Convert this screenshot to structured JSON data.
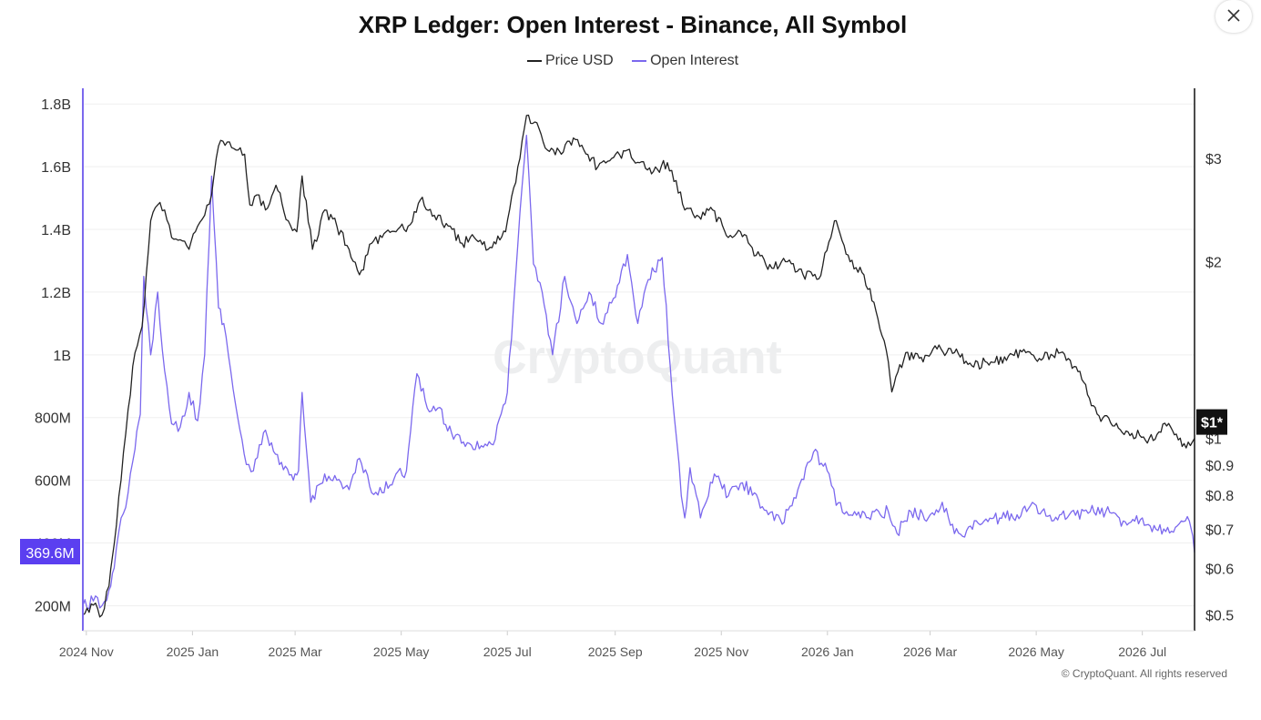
{
  "chart_data": {
    "type": "line",
    "title": "XRP Ledger: Open Interest - Binance, All Symbol",
    "legend": {
      "position": "top-center"
    },
    "x_tick_labels": [
      "2024 Nov",
      "2025 Jan",
      "2025 Mar",
      "2025 May",
      "2025 Jul",
      "2025 Sep",
      "2025 Nov",
      "2026 Jan",
      "2026 Mar",
      "2026 May",
      "2026 Jul"
    ],
    "y_left": {
      "tick_labels": [
        "200M",
        "400M",
        "600M",
        "800M",
        "1B",
        "1.2B",
        "1.4B",
        "1.6B",
        "1.8B"
      ],
      "tick_values": [
        200000000,
        400000000,
        600000000,
        800000000,
        1000000000,
        1200000000,
        1400000000,
        1600000000,
        1800000000
      ],
      "range": [
        120000000,
        1850000000
      ],
      "current_value_label": "369.6M",
      "color": "#7b68ee"
    },
    "y_right": {
      "scale": "log",
      "tick_labels": [
        "$0.5",
        "$0.6",
        "$0.7",
        "$0.8",
        "$0.9",
        "$1",
        "$2",
        "$3"
      ],
      "tick_values": [
        0.5,
        0.6,
        0.7,
        0.8,
        0.9,
        1,
        2,
        3
      ],
      "range": [
        0.47,
        3.95
      ],
      "current_value_label": "$1*",
      "color": "#111111"
    },
    "grid": true,
    "series": [
      {
        "name": "Price USD",
        "axis": "right",
        "color": "#222222",
        "x": [
          "2024-10-30",
          "2024-11-05",
          "2024-11-10",
          "2024-11-14",
          "2024-11-17",
          "2024-11-21",
          "2024-11-25",
          "2024-11-29",
          "2024-12-03",
          "2024-12-08",
          "2024-12-12",
          "2024-12-16",
          "2024-12-20",
          "2024-12-25",
          "2024-12-30",
          "2025-01-04",
          "2025-01-08",
          "2025-01-12",
          "2025-01-16",
          "2025-01-21",
          "2025-01-26",
          "2025-01-31",
          "2025-02-03",
          "2025-02-07",
          "2025-02-12",
          "2025-02-18",
          "2025-02-25",
          "2025-03-02",
          "2025-03-05",
          "2025-03-11",
          "2025-03-18",
          "2025-03-25",
          "2025-04-01",
          "2025-04-07",
          "2025-04-14",
          "2025-04-20",
          "2025-04-28",
          "2025-05-05",
          "2025-05-12",
          "2025-05-20",
          "2025-05-28",
          "2025-06-05",
          "2025-06-12",
          "2025-06-20",
          "2025-06-30",
          "2025-07-07",
          "2025-07-12",
          "2025-07-18",
          "2025-07-24",
          "2025-08-01",
          "2025-08-08",
          "2025-08-14",
          "2025-08-22",
          "2025-08-30",
          "2025-09-08",
          "2025-09-15",
          "2025-09-23",
          "2025-10-01",
          "2025-10-06",
          "2025-10-11",
          "2025-10-18",
          "2025-10-27",
          "2025-11-05",
          "2025-11-12",
          "2025-11-21",
          "2025-11-30",
          "2025-12-09",
          "2025-12-18",
          "2025-12-27",
          "2026-01-03",
          "2026-01-06",
          "2026-01-14",
          "2026-01-22",
          "2026-01-30",
          "2026-02-05",
          "2026-02-07",
          "2026-02-15",
          "2026-02-25",
          "2026-03-05",
          "2026-03-15",
          "2026-03-25",
          "2026-04-05",
          "2026-04-15",
          "2026-04-25",
          "2026-05-05",
          "2026-05-15",
          "2026-05-25",
          "2026-06-05",
          "2026-06-15",
          "2026-06-25",
          "2026-07-05",
          "2026-07-15",
          "2026-07-25",
          "2026-07-31"
        ],
        "values": [
          0.5,
          0.52,
          0.5,
          0.56,
          0.66,
          0.85,
          1.12,
          1.4,
          1.55,
          2.35,
          2.5,
          2.45,
          2.2,
          2.18,
          2.1,
          2.3,
          2.4,
          2.6,
          3.15,
          3.2,
          3.1,
          3.05,
          2.5,
          2.6,
          2.45,
          2.7,
          2.35,
          2.25,
          2.8,
          2.1,
          2.45,
          2.3,
          2.1,
          1.9,
          2.15,
          2.2,
          2.25,
          2.3,
          2.55,
          2.4,
          2.3,
          2.15,
          2.2,
          2.1,
          2.25,
          2.9,
          3.55,
          3.45,
          3.1,
          3.05,
          3.25,
          3.1,
          2.9,
          3.0,
          3.1,
          2.95,
          2.85,
          2.95,
          2.75,
          2.45,
          2.4,
          2.45,
          2.2,
          2.25,
          2.05,
          1.95,
          2.0,
          1.9,
          1.87,
          2.2,
          2.35,
          2.0,
          1.9,
          1.6,
          1.35,
          1.2,
          1.4,
          1.35,
          1.42,
          1.4,
          1.33,
          1.35,
          1.38,
          1.4,
          1.37,
          1.4,
          1.3,
          1.1,
          1.05,
          1.02,
          1.0,
          1.05,
          0.98,
          1.0
        ]
      },
      {
        "name": "Open Interest",
        "axis": "left",
        "color": "#7b68ee",
        "x": [
          "2024-10-30",
          "2024-11-05",
          "2024-11-10",
          "2024-11-14",
          "2024-11-17",
          "2024-11-21",
          "2024-11-25",
          "2024-11-29",
          "2024-12-02",
          "2024-12-04",
          "2024-12-08",
          "2024-12-12",
          "2024-12-16",
          "2024-12-20",
          "2024-12-25",
          "2024-12-30",
          "2025-01-04",
          "2025-01-08",
          "2025-01-12",
          "2025-01-16",
          "2025-01-19",
          "2025-01-23",
          "2025-01-27",
          "2025-02-01",
          "2025-02-05",
          "2025-02-12",
          "2025-02-20",
          "2025-02-28",
          "2025-03-03",
          "2025-03-05",
          "2025-03-10",
          "2025-03-18",
          "2025-03-25",
          "2025-04-01",
          "2025-04-07",
          "2025-04-14",
          "2025-04-20",
          "2025-04-28",
          "2025-05-04",
          "2025-05-10",
          "2025-05-16",
          "2025-05-22",
          "2025-05-30",
          "2025-06-08",
          "2025-06-16",
          "2025-06-24",
          "2025-07-01",
          "2025-07-07",
          "2025-07-12",
          "2025-07-16",
          "2025-07-21",
          "2025-07-27",
          "2025-08-03",
          "2025-08-10",
          "2025-08-17",
          "2025-08-24",
          "2025-08-31",
          "2025-09-08",
          "2025-09-14",
          "2025-09-20",
          "2025-09-28",
          "2025-10-05",
          "2025-10-09",
          "2025-10-11",
          "2025-10-14",
          "2025-10-20",
          "2025-10-28",
          "2025-11-05",
          "2025-11-12",
          "2025-11-20",
          "2025-11-28",
          "2025-12-06",
          "2025-12-15",
          "2025-12-24",
          "2026-01-02",
          "2026-01-06",
          "2026-01-12",
          "2026-01-20",
          "2026-01-28",
          "2026-02-05",
          "2026-02-10",
          "2026-02-18",
          "2026-02-28",
          "2026-03-08",
          "2026-03-15",
          "2026-03-22",
          "2026-04-01",
          "2026-04-10",
          "2026-04-20",
          "2026-05-01",
          "2026-05-10",
          "2026-05-20",
          "2026-06-01",
          "2026-06-10",
          "2026-06-20",
          "2026-07-01",
          "2026-07-10",
          "2026-07-20",
          "2026-07-28",
          "2026-07-31"
        ],
        "values": [
          200000000,
          215000000,
          200000000,
          250000000,
          320000000,
          480000000,
          560000000,
          700000000,
          810000000,
          1250000000,
          1000000000,
          1200000000,
          950000000,
          780000000,
          770000000,
          880000000,
          790000000,
          1000000000,
          1570000000,
          1150000000,
          1100000000,
          950000000,
          800000000,
          650000000,
          630000000,
          760000000,
          650000000,
          600000000,
          630000000,
          880000000,
          530000000,
          620000000,
          600000000,
          570000000,
          670000000,
          560000000,
          560000000,
          620000000,
          630000000,
          940000000,
          830000000,
          830000000,
          750000000,
          720000000,
          710000000,
          730000000,
          880000000,
          1350000000,
          1700000000,
          1290000000,
          1200000000,
          1000000000,
          1250000000,
          1100000000,
          1200000000,
          1100000000,
          1180000000,
          1320000000,
          1100000000,
          1240000000,
          1310000000,
          800000000,
          550000000,
          480000000,
          640000000,
          480000000,
          620000000,
          550000000,
          590000000,
          560000000,
          490000000,
          460000000,
          570000000,
          690000000,
          620000000,
          520000000,
          500000000,
          480000000,
          500000000,
          500000000,
          430000000,
          500000000,
          480000000,
          530000000,
          430000000,
          440000000,
          470000000,
          480000000,
          490000000,
          520000000,
          470000000,
          490000000,
          500000000,
          500000000,
          470000000,
          480000000,
          440000000,
          450000000,
          470000000,
          369600000
        ]
      }
    ]
  },
  "watermark": "CryptoQuant",
  "copyright": "© CryptoQuant. All rights reserved",
  "icons": {
    "close": "close-icon"
  }
}
